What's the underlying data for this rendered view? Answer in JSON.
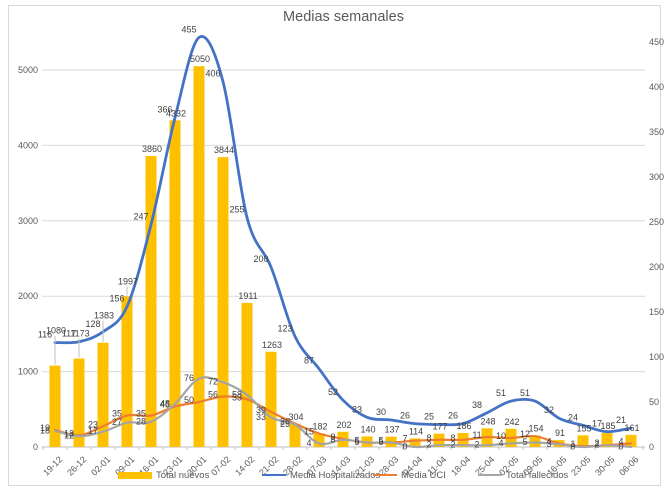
{
  "title": "Medias semanales",
  "chart_data": {
    "type": "bar",
    "subtype": "combo-bar-line",
    "title": "Medias semanales",
    "categories": [
      "19-12",
      "26-12",
      "02-01",
      "09-01",
      "16-01",
      "23-01",
      "30-01",
      "07-02",
      "14-02",
      "21-02",
      "28-02",
      "07-03",
      "14-03",
      "21-03",
      "28-03",
      "04-04",
      "11-04",
      "18-04",
      "25-04",
      "02-05",
      "09-05",
      "16-05",
      "23-05",
      "30-05",
      "06-06"
    ],
    "series": [
      {
        "name": "Total nuevos",
        "type": "bar",
        "axis": "left",
        "color": "#FFC000",
        "values": [
          1080,
          1173,
          1383,
          1997,
          3860,
          4332,
          5050,
          3844,
          1911,
          1263,
          304,
          182,
          202,
          140,
          137,
          114,
          177,
          186,
          248,
          242,
          154,
          91,
          155,
          185,
          161
        ]
      },
      {
        "name": "Media Hospitalizados",
        "type": "line",
        "axis": "right",
        "color": "#4472C4",
        "values": [
          116,
          117,
          128,
          156,
          247,
          366,
          455,
          406,
          255,
          200,
          123,
          87,
          52,
          33,
          30,
          26,
          25,
          26,
          38,
          51,
          51,
          32,
          24,
          17,
          21
        ]
      },
      {
        "name": "Media UCI",
        "type": "line",
        "axis": "right",
        "color": "#ED7D31",
        "values": [
          19,
          13,
          23,
          35,
          35,
          45,
          50,
          56,
          53,
          39,
          26,
          15,
          9,
          5,
          5,
          7,
          8,
          8,
          11,
          10,
          12,
          4,
          1,
          2,
          4
        ]
      },
      {
        "name": "Total fallecidos",
        "type": "line",
        "axis": "right",
        "color": "#A5A5A5",
        "values": [
          18,
          12,
          17,
          27,
          28,
          48,
          76,
          72,
          58,
          33,
          25,
          4,
          8,
          5,
          5,
          0,
          2,
          2,
          2,
          4,
          5,
          3,
          0,
          2,
          0
        ]
      }
    ],
    "left_axis": {
      "min": 0,
      "max": 5000,
      "ticks": [
        0,
        1000,
        2000,
        3000,
        4000,
        5000
      ]
    },
    "right_axis": {
      "min": 0,
      "max": 450,
      "ticks": [
        0,
        50,
        100,
        150,
        200,
        250,
        300,
        350,
        400,
        450
      ]
    },
    "grid": true,
    "legend_position": "bottom",
    "label_color": "#404040",
    "axis_color": "#595959",
    "grid_color": "#D9D9D9"
  }
}
